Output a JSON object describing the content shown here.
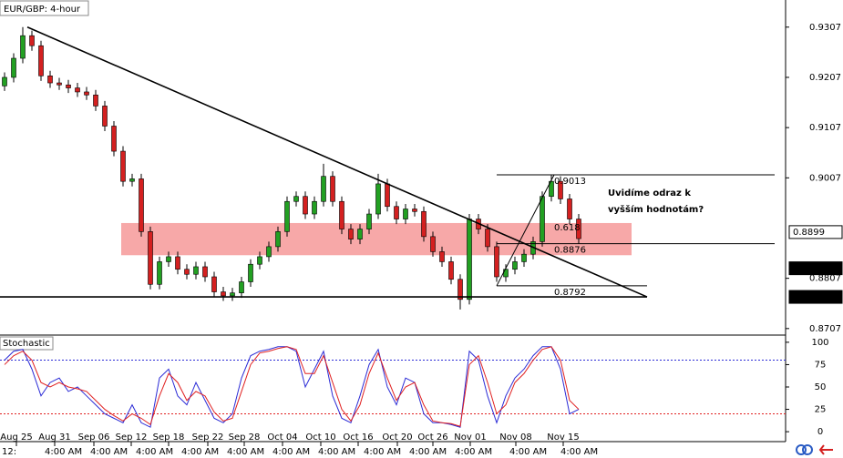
{
  "chart_data": [
    {
      "type": "candlestick",
      "title": "EUR/GBP: 4-hour",
      "open": [
        0.919,
        0.9207,
        0.9245,
        0.929,
        0.927,
        0.921,
        0.9196,
        0.9192,
        0.9186,
        0.9178,
        0.9172,
        0.915,
        0.911,
        0.906,
        0.9,
        0.9005,
        0.89,
        0.8795,
        0.884,
        0.885,
        0.8825,
        0.8815,
        0.883,
        0.881,
        0.878,
        0.8772,
        0.8778,
        0.88,
        0.8835,
        0.885,
        0.887,
        0.89,
        0.896,
        0.897,
        0.8935,
        0.896,
        0.901,
        0.896,
        0.8905,
        0.8885,
        0.8905,
        0.8935,
        0.8995,
        0.895,
        0.8925,
        0.8945,
        0.894,
        0.889,
        0.886,
        0.884,
        0.8805,
        0.8765,
        0.8925,
        0.8905,
        0.887,
        0.881,
        0.8825,
        0.884,
        0.8855,
        0.888,
        0.897,
        0.9,
        0.8965,
        0.8925
      ],
      "high": [
        0.9217,
        0.9255,
        0.9307,
        0.93,
        0.928,
        0.922,
        0.9206,
        0.9202,
        0.9196,
        0.9188,
        0.9182,
        0.916,
        0.912,
        0.907,
        0.9015,
        0.9015,
        0.891,
        0.885,
        0.886,
        0.886,
        0.8835,
        0.884,
        0.884,
        0.882,
        0.879,
        0.8788,
        0.881,
        0.8845,
        0.886,
        0.888,
        0.891,
        0.897,
        0.898,
        0.898,
        0.897,
        0.9035,
        0.902,
        0.897,
        0.8915,
        0.8915,
        0.8945,
        0.9015,
        0.9005,
        0.896,
        0.8955,
        0.8955,
        0.895,
        0.89,
        0.887,
        0.885,
        0.8815,
        0.8935,
        0.8935,
        0.8915,
        0.888,
        0.8835,
        0.885,
        0.8865,
        0.889,
        0.898,
        0.9013,
        0.901,
        0.8975,
        0.8935
      ],
      "low": [
        0.918,
        0.9197,
        0.9235,
        0.926,
        0.92,
        0.9186,
        0.9182,
        0.9176,
        0.9168,
        0.9162,
        0.914,
        0.91,
        0.905,
        0.899,
        0.899,
        0.889,
        0.8785,
        0.8785,
        0.883,
        0.8815,
        0.8805,
        0.8805,
        0.88,
        0.877,
        0.8762,
        0.8762,
        0.8768,
        0.879,
        0.8825,
        0.884,
        0.886,
        0.889,
        0.895,
        0.8925,
        0.8925,
        0.895,
        0.895,
        0.8895,
        0.8875,
        0.8875,
        0.8895,
        0.8925,
        0.894,
        0.8915,
        0.8915,
        0.893,
        0.888,
        0.885,
        0.883,
        0.8795,
        0.8745,
        0.8755,
        0.8895,
        0.886,
        0.88,
        0.88,
        0.8815,
        0.883,
        0.8845,
        0.887,
        0.896,
        0.8955,
        0.8915,
        0.8876
      ],
      "close": [
        0.9207,
        0.9245,
        0.929,
        0.927,
        0.921,
        0.9196,
        0.9192,
        0.9186,
        0.9178,
        0.9172,
        0.915,
        0.911,
        0.906,
        0.9,
        0.9005,
        0.89,
        0.8795,
        0.884,
        0.885,
        0.8825,
        0.8815,
        0.883,
        0.881,
        0.878,
        0.8772,
        0.8778,
        0.88,
        0.8835,
        0.885,
        0.887,
        0.89,
        0.896,
        0.897,
        0.8935,
        0.896,
        0.901,
        0.896,
        0.8905,
        0.8885,
        0.8905,
        0.8935,
        0.8995,
        0.895,
        0.8925,
        0.8945,
        0.894,
        0.889,
        0.886,
        0.884,
        0.8805,
        0.8765,
        0.8925,
        0.8905,
        0.887,
        0.881,
        0.8825,
        0.884,
        0.8855,
        0.888,
        0.897,
        0.9,
        0.8965,
        0.8925,
        0.8886
      ],
      "up_color": "#22a022",
      "down_color": "#d42020",
      "xlim": [
        -0.5,
        85.7
      ],
      "ylim": [
        0.8694,
        0.9361
      ],
      "yticks": [
        0.9307,
        0.9207,
        0.9107,
        0.9007,
        0.8807,
        0.8707
      ],
      "xticks": [
        {
          "value": 1.3,
          "label": "Aug 25"
        },
        {
          "value": 5.5,
          "label": "Aug 31"
        },
        {
          "value": 9.8,
          "label": "Sep 06"
        },
        {
          "value": 13.9,
          "label": "Sep 12"
        },
        {
          "value": 18,
          "label": "Sep 18"
        },
        {
          "value": 22.3,
          "label": "Sep 22"
        },
        {
          "value": 26.3,
          "label": "Sep 28"
        },
        {
          "value": 30.5,
          "label": "Oct 04"
        },
        {
          "value": 34.7,
          "label": "Oct 10"
        },
        {
          "value": 38.8,
          "label": "Oct 16"
        },
        {
          "value": 43.1,
          "label": "Oct 20"
        },
        {
          "value": 47,
          "label": "Oct 26"
        },
        {
          "value": 51.1,
          "label": "Nov 01"
        },
        {
          "value": 56.1,
          "label": "Nov 08"
        },
        {
          "value": 61.3,
          "label": "Nov 15"
        }
      ],
      "time_ticks": [
        {
          "value": -0.3,
          "label": "12:"
        },
        {
          "value": 4.4,
          "label": "4:00 AM"
        },
        {
          "value": 9.4,
          "label": "4:00 AM"
        },
        {
          "value": 14.4,
          "label": "4:00 AM"
        },
        {
          "value": 19.4,
          "label": "4:00 AM"
        },
        {
          "value": 24.4,
          "label": "4:00 AM"
        },
        {
          "value": 29.4,
          "label": "4:00 AM"
        },
        {
          "value": 34.4,
          "label": "4:00 AM"
        },
        {
          "value": 39.4,
          "label": "4:00 AM"
        },
        {
          "value": 44.4,
          "label": "4:00 AM"
        },
        {
          "value": 49.4,
          "label": "4:00 AM"
        },
        {
          "value": 55.4,
          "label": "4:00 AM"
        },
        {
          "value": 61,
          "label": "4:00 AM"
        }
      ],
      "price_markers": [
        {
          "value": 0.8899,
          "label": "0.8899",
          "style": "outline"
        },
        {
          "value": 0.8827,
          "label": "0.8827",
          "style": "filled"
        },
        {
          "value": 0.877,
          "label": "0.8770",
          "style": "filled"
        }
      ],
      "zone": {
        "x": [
          12.8,
          68.8
        ],
        "y": [
          0.8853,
          0.8917
        ],
        "color": "#f7a8a8"
      },
      "lines": [
        {
          "x": [
            2.5,
            70.5
          ],
          "y": [
            0.9307,
            0.877
          ]
        },
        {
          "x": [
            -0.5,
            70.5
          ],
          "y": [
            0.877,
            0.877
          ]
        },
        {
          "x": [
            54,
            60.3
          ],
          "y": [
            0.8792,
            0.9013
          ]
        }
      ],
      "fib_levels": [
        {
          "value": 0.9013,
          "label": "0.9013",
          "x": [
            54,
            84.5
          ]
        },
        {
          "value": 0.8876,
          "label": "0.8876",
          "x": [
            54,
            84.5
          ]
        },
        {
          "value": 0.8792,
          "label": "0.8792",
          "x": [
            54,
            70.5
          ]
        }
      ],
      "fib_ratio": {
        "label": "0.618",
        "value": 0.8908
      },
      "annotation": "Uvidíme odraz k vyšším hodnotám?"
    },
    {
      "type": "line",
      "title": "Stochastic",
      "xlim": [
        -0.5,
        85.7
      ],
      "ylim": [
        -6,
        106
      ],
      "yticks": [
        0,
        25,
        50,
        75,
        100
      ],
      "levels": [
        80,
        20
      ],
      "series": [
        {
          "color": "#2b2bd6",
          "values": [
            80,
            90,
            92,
            70,
            40,
            55,
            60,
            45,
            50,
            40,
            30,
            20,
            15,
            10,
            30,
            10,
            5,
            60,
            70,
            40,
            30,
            55,
            35,
            15,
            10,
            20,
            60,
            85,
            90,
            92,
            95,
            95,
            90,
            50,
            70,
            90,
            40,
            15,
            10,
            40,
            75,
            92,
            50,
            30,
            60,
            55,
            20,
            10,
            10,
            8,
            5,
            90,
            80,
            40,
            10,
            40,
            60,
            70,
            85,
            95,
            95,
            70,
            20,
            25
          ]
        },
        {
          "color": "#e02020",
          "values": [
            75,
            85,
            90,
            80,
            55,
            50,
            55,
            50,
            48,
            45,
            35,
            25,
            18,
            12,
            20,
            15,
            8,
            40,
            65,
            55,
            35,
            45,
            40,
            22,
            12,
            15,
            45,
            75,
            88,
            90,
            93,
            95,
            92,
            65,
            65,
            85,
            55,
            25,
            12,
            30,
            65,
            88,
            60,
            35,
            50,
            55,
            30,
            12,
            10,
            9,
            6,
            75,
            85,
            55,
            20,
            30,
            55,
            65,
            80,
            92,
            95,
            80,
            35,
            25
          ]
        }
      ]
    }
  ]
}
